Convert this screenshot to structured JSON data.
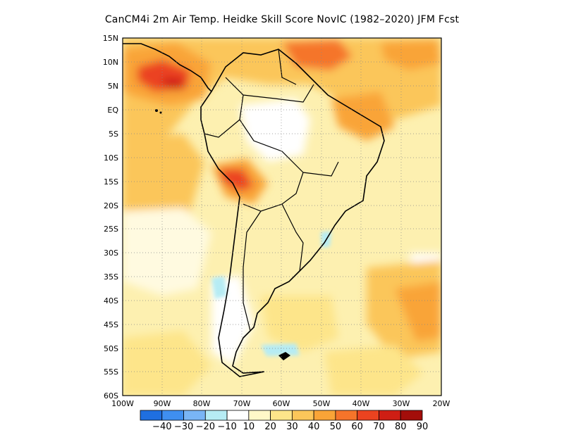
{
  "title": "CanCM4i  2m Air Temp. Heidke Skill Score NovIC (1982–2020) JFM Fcst",
  "map": {
    "lat_labels": [
      "15N",
      "10N",
      "5N",
      "EQ",
      "5S",
      "10S",
      "15S",
      "20S",
      "25S",
      "30S",
      "35S",
      "40S",
      "45S",
      "50S",
      "55S",
      "60S"
    ],
    "lon_labels": [
      "100W",
      "90W",
      "80W",
      "70W",
      "60W",
      "50W",
      "40W",
      "30W",
      "20W"
    ],
    "colors": {
      "ocean_base": "#fdf0b0",
      "land_base": "#fdeaa0",
      "coastline": "#000000",
      "grid": "#888888"
    }
  },
  "colorbar": {
    "labels": [
      "−40",
      "−30",
      "−20",
      "−10",
      "10",
      "20",
      "30",
      "40",
      "50",
      "60",
      "70",
      "80",
      "90"
    ],
    "colors": [
      "#1f6fe0",
      "#3f8ff0",
      "#79b5f5",
      "#b6ecf4",
      "#ffffff",
      "#fff8c8",
      "#fde58a",
      "#fbc65a",
      "#f9a437",
      "#f5742a",
      "#eb4320",
      "#cf1e14",
      "#a30e0a"
    ]
  }
}
